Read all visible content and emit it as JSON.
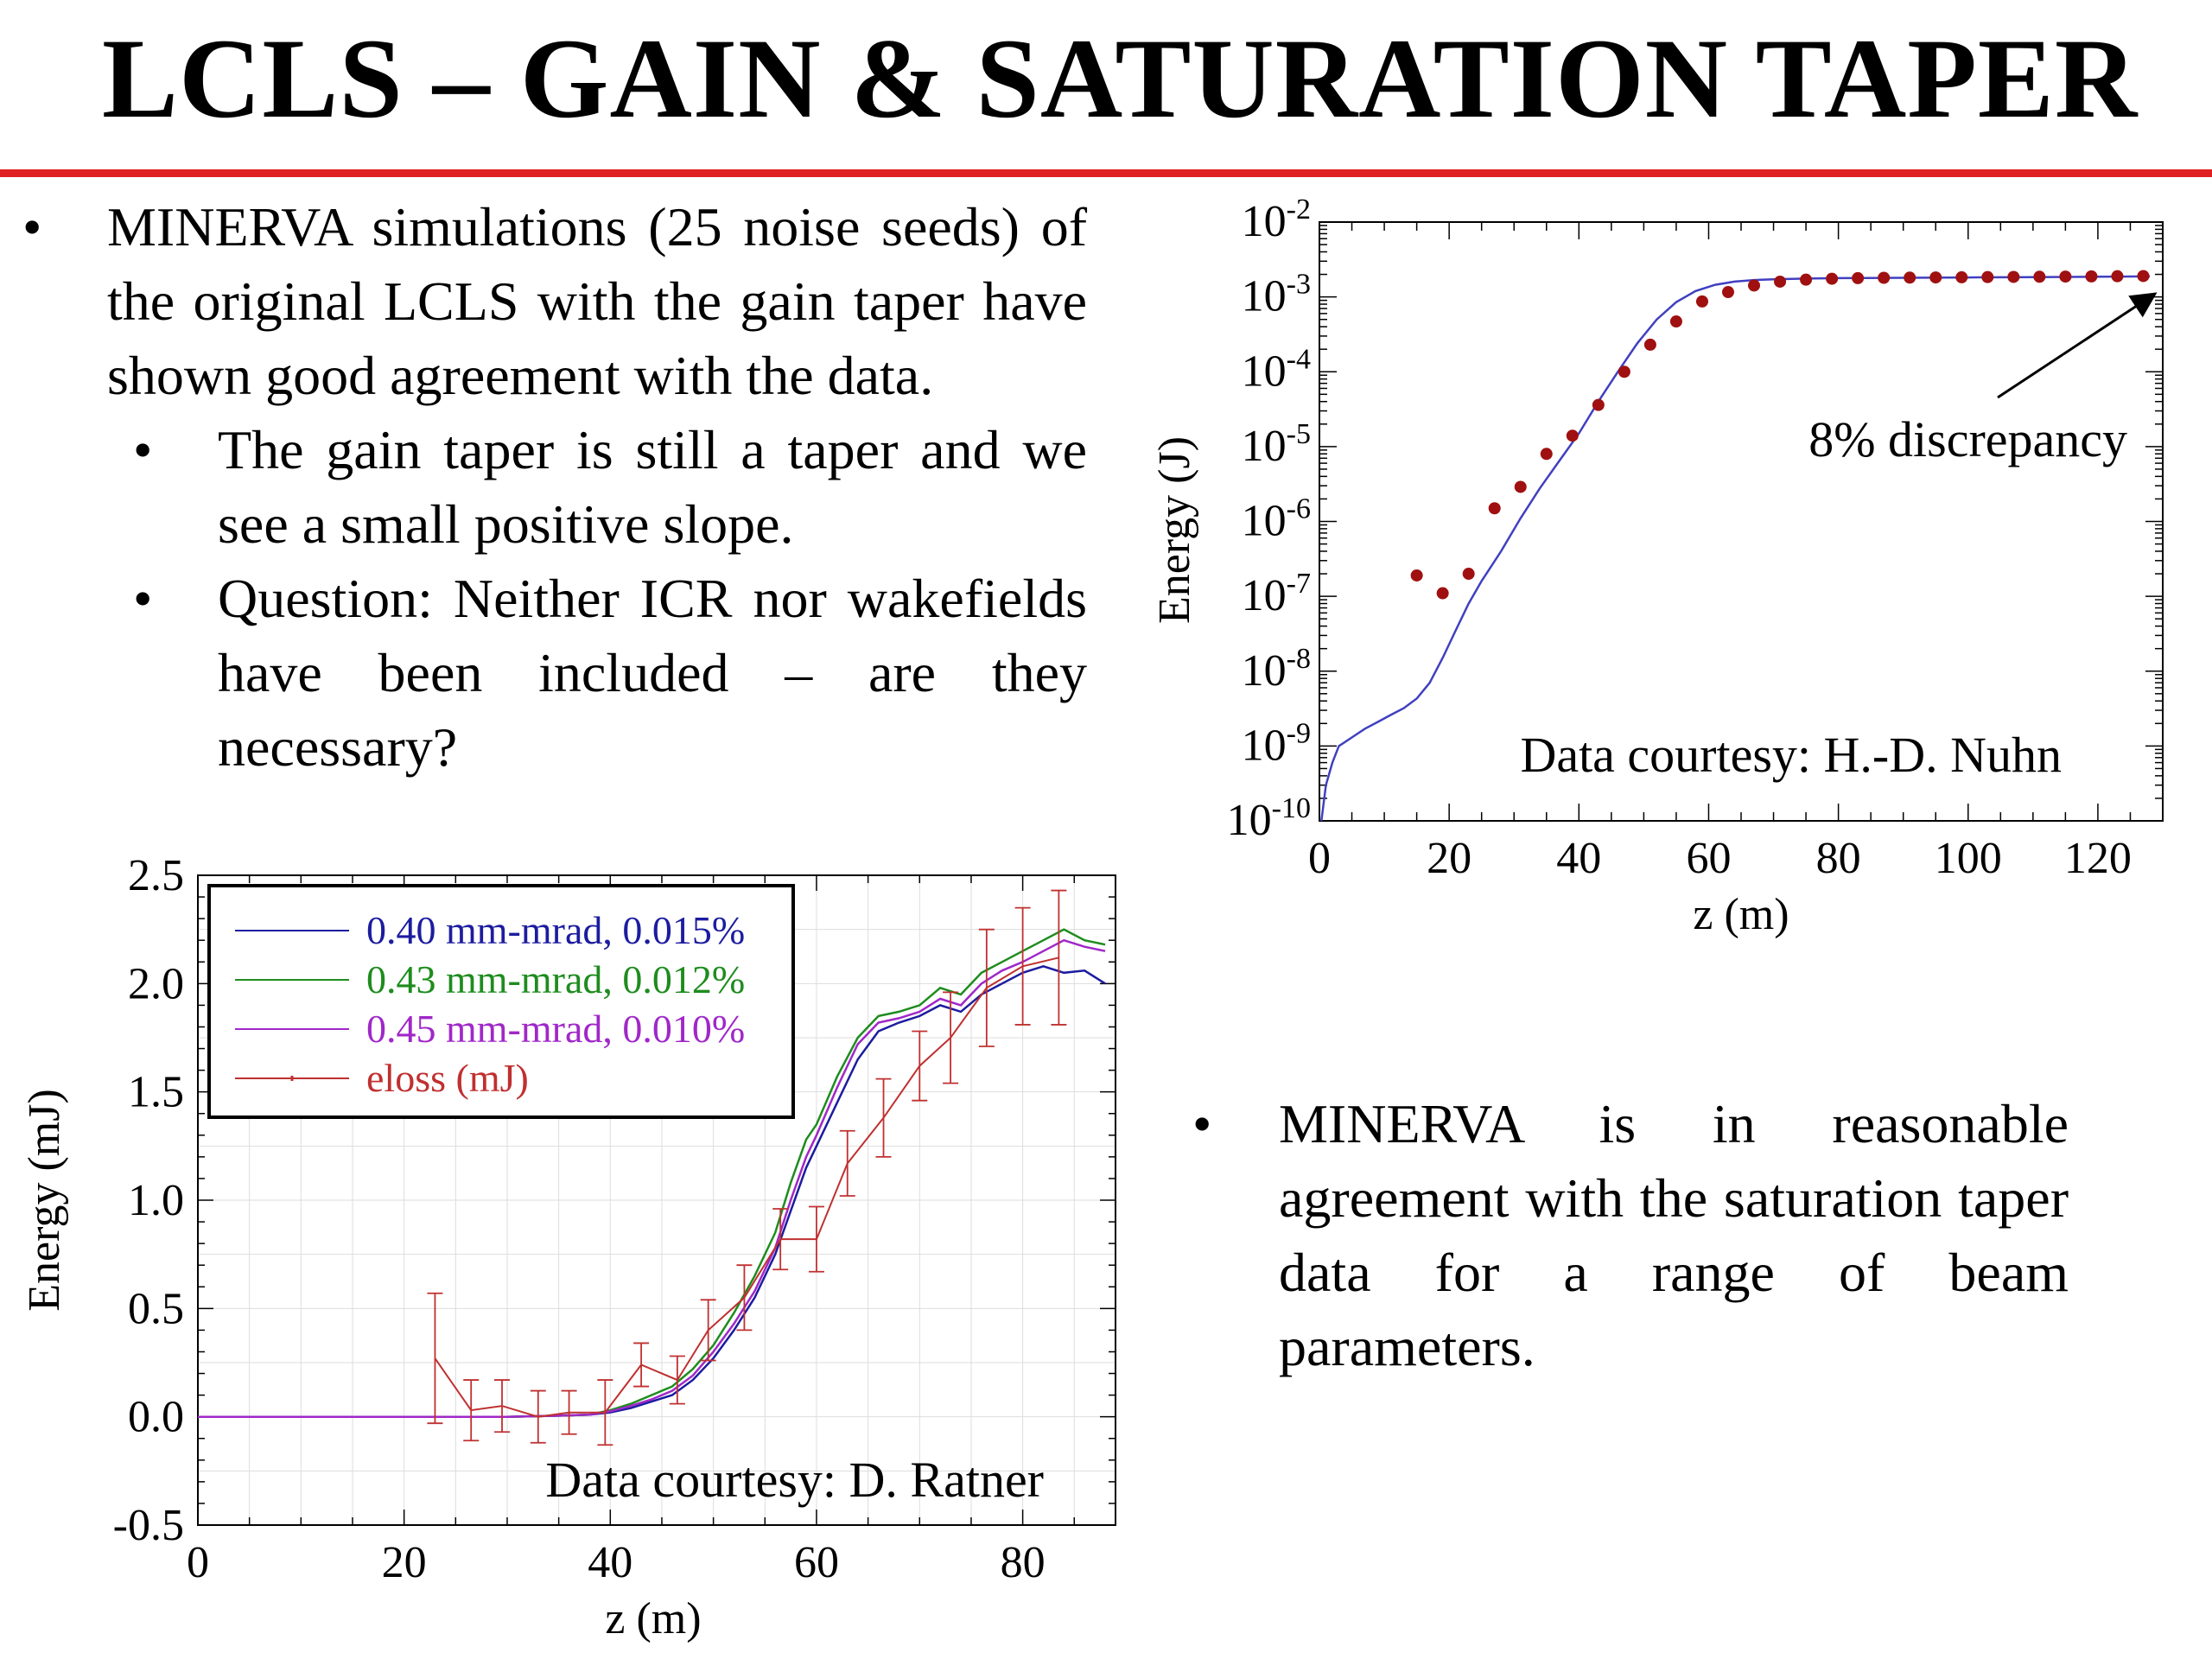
{
  "title": "LCLS – GAIN & SATURATION TAPER",
  "colors": {
    "rule": "#e02020",
    "marker": "#a01010"
  },
  "left_text": {
    "bullet": "MINERVA simulations (25 noise seeds) of the original LCLS with the gain taper have shown good agreement with the data.",
    "sub_bullets": [
      "The gain taper is still a taper and we see a small positive slope.",
      "Question: Neither ICR nor wakefields have been included – are they necessary?"
    ]
  },
  "right_text": {
    "bullet": "MINERVA is in reasonable agreement with the saturation taper data for a range of beam parameters."
  },
  "chart_data": [
    {
      "type": "scatter",
      "xlabel": "z (m)",
      "ylabel": "Energy (J)",
      "yscale": "log",
      "xlim": [
        0,
        130
      ],
      "ylim": [
        1e-10,
        0.01
      ],
      "xticks": [
        0,
        20,
        40,
        60,
        80,
        100,
        120
      ],
      "xtick_labels": [
        "0",
        "20",
        "40",
        "60",
        "80",
        "100",
        "120"
      ],
      "yticks": [
        1e-10,
        1e-09,
        1e-08,
        1e-07,
        1e-06,
        1e-05,
        0.0001,
        0.001,
        0.01
      ],
      "ytick_labels": [
        {
          "base": "10",
          "exp": "-10"
        },
        {
          "base": "10",
          "exp": "-9"
        },
        {
          "base": "10",
          "exp": "-8"
        },
        {
          "base": "10",
          "exp": "-7"
        },
        {
          "base": "10",
          "exp": "-6"
        },
        {
          "base": "10",
          "exp": "-5"
        },
        {
          "base": "10",
          "exp": "-4"
        },
        {
          "base": "10",
          "exp": "-3"
        },
        {
          "base": "10",
          "exp": "-2"
        }
      ],
      "series": [
        {
          "kind": "line",
          "color": "#4040c0",
          "x": [
            0.3,
            1,
            2,
            3,
            5,
            7,
            9,
            11,
            13,
            15,
            17,
            19,
            21,
            23,
            25,
            28,
            31,
            34,
            37,
            40,
            43,
            46,
            49,
            52,
            55,
            58,
            61,
            64,
            67,
            70,
            75,
            80,
            90,
            100,
            110,
            120,
            128
          ],
          "y": [
            1e-10,
            3e-10,
            6e-10,
            1e-09,
            1.3e-09,
            1.7e-09,
            2.1e-09,
            2.6e-09,
            3.2e-09,
            4.3e-09,
            7e-09,
            1.5e-08,
            3.5e-08,
            8e-08,
            1.6e-07,
            4e-07,
            1.1e-06,
            2.8e-06,
            6.5e-06,
            1.5e-05,
            4e-05,
            0.0001,
            0.00024,
            0.0005,
            0.00085,
            0.0012,
            0.00145,
            0.0016,
            0.00168,
            0.00172,
            0.00176,
            0.00178,
            0.0018,
            0.00182,
            0.00184,
            0.00186,
            0.00188
          ]
        },
        {
          "kind": "markers",
          "color": "#a01010",
          "x": [
            15,
            19,
            23,
            27,
            31,
            35,
            39,
            43,
            47,
            51,
            55,
            59,
            63,
            67,
            71,
            75,
            79,
            83,
            87,
            91,
            95,
            99,
            103,
            107,
            111,
            115,
            119,
            123,
            127
          ],
          "y": [
            1.9e-07,
            1.1e-07,
            2e-07,
            1.5e-06,
            2.9e-06,
            8e-06,
            1.4e-05,
            3.6e-05,
            0.0001,
            0.00023,
            0.00047,
            0.00087,
            0.00116,
            0.00142,
            0.0016,
            0.0017,
            0.00175,
            0.00178,
            0.0018,
            0.00181,
            0.00182,
            0.00183,
            0.00184,
            0.00185,
            0.00186,
            0.00187,
            0.00188,
            0.00189,
            0.0019
          ]
        }
      ],
      "annotations": {
        "discrepancy": "8% discrepancy",
        "courtesy": "Data courtesy: H.-D. Nuhn"
      }
    },
    {
      "type": "line",
      "xlabel": "z (m)",
      "ylabel": "Energy (mJ)",
      "xlim": [
        0,
        89
      ],
      "ylim": [
        -0.5,
        2.5
      ],
      "xticks": [
        0,
        20,
        40,
        60,
        80
      ],
      "xtick_labels": [
        "0",
        "20",
        "40",
        "60",
        "80"
      ],
      "yticks": [
        -0.5,
        0,
        0.5,
        1,
        1.5,
        2,
        2.5
      ],
      "ytick_labels": [
        "-0.5",
        "0.0",
        "0.5",
        "1.0",
        "1.5",
        "2.0",
        "2.5"
      ],
      "legend_position": "top-left",
      "x": [
        0,
        10,
        20,
        30,
        35,
        38,
        40,
        42,
        44,
        46,
        48,
        50,
        52,
        54,
        56,
        57.5,
        59,
        60,
        62,
        64,
        66,
        68,
        70,
        72,
        74,
        76,
        78,
        80,
        82,
        84,
        86,
        88
      ],
      "series": [
        {
          "name": "0.40 mm-mrad, 0.015%",
          "color": "#1c1ca0",
          "values": [
            0,
            0,
            0,
            0,
            0.005,
            0.01,
            0.02,
            0.04,
            0.07,
            0.1,
            0.17,
            0.27,
            0.4,
            0.55,
            0.75,
            0.95,
            1.15,
            1.25,
            1.45,
            1.65,
            1.78,
            1.82,
            1.85,
            1.9,
            1.87,
            1.95,
            2.0,
            2.05,
            2.08,
            2.05,
            2.06,
            2.0
          ]
        },
        {
          "name": "0.43 mm-mrad, 0.012%",
          "color": "#1e8c1e",
          "values": [
            0,
            0,
            0,
            0,
            0.005,
            0.01,
            0.03,
            0.06,
            0.1,
            0.14,
            0.22,
            0.33,
            0.48,
            0.65,
            0.85,
            1.08,
            1.28,
            1.35,
            1.57,
            1.75,
            1.85,
            1.87,
            1.9,
            1.98,
            1.95,
            2.05,
            2.1,
            2.15,
            2.2,
            2.25,
            2.2,
            2.18
          ]
        },
        {
          "name": "0.45 mm-mrad, 0.010%",
          "color": "#a028c8",
          "values": [
            0,
            0,
            0,
            0,
            0.005,
            0.01,
            0.025,
            0.05,
            0.08,
            0.12,
            0.19,
            0.3,
            0.43,
            0.58,
            0.78,
            1.0,
            1.2,
            1.3,
            1.52,
            1.72,
            1.82,
            1.84,
            1.87,
            1.93,
            1.9,
            2.0,
            2.06,
            2.1,
            2.15,
            2.2,
            2.17,
            2.15
          ]
        },
        {
          "name": "eloss (mJ)",
          "color": "#c03030",
          "kind": "errorbar",
          "x": [
            23,
            26.5,
            29.5,
            33,
            36,
            39.5,
            43,
            46.5,
            49.5,
            53,
            56.5,
            60,
            63,
            66.5,
            70,
            73,
            76.5,
            80,
            83.5
          ],
          "values": [
            0.27,
            0.03,
            0.05,
            0.0,
            0.02,
            0.02,
            0.24,
            0.17,
            0.4,
            0.55,
            0.82,
            0.82,
            1.17,
            1.38,
            1.62,
            1.75,
            1.98,
            2.08,
            2.12
          ],
          "errors": [
            0.3,
            0.14,
            0.12,
            0.12,
            0.1,
            0.15,
            0.1,
            0.11,
            0.14,
            0.15,
            0.14,
            0.15,
            0.15,
            0.18,
            0.16,
            0.21,
            0.27,
            0.27,
            0.31
          ]
        }
      ],
      "annotations": {
        "courtesy": "Data courtesy: D. Ratner"
      }
    }
  ]
}
